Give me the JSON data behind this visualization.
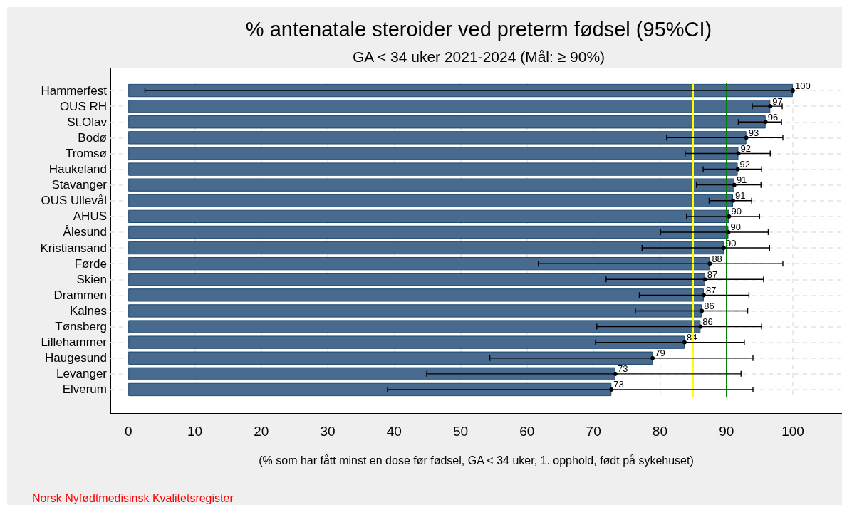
{
  "chart_data": {
    "type": "bar",
    "orientation": "horizontal",
    "title": "% antenatale steroider ved preterm fødsel (95%CI)",
    "subtitle": "GA < 34 uker 2021-2024 (Mål: ≥ 90%)",
    "xlabel": "(% som har fått minst en dose før fødsel, GA < 34 uker, 1. opphold, født på sykehuset)",
    "annotations": [
      "Norsk Nyfødtmedisinsk Kvalitetsregister"
    ],
    "categories": [
      "Hammerfest",
      "OUS RH",
      "St.Olav",
      "Bodø",
      "Tromsø",
      "Haukeland",
      "Stavanger",
      "OUS Ullevål",
      "AHUS",
      "Ålesund",
      "Kristiansand",
      "Førde",
      "Skien",
      "Drammen",
      "Kalnes",
      "Tønsberg",
      "Lillehammer",
      "Haugesund",
      "Levanger",
      "Elverum"
    ],
    "series": [
      {
        "color": "#476a8e",
        "values": [
          100,
          96.6,
          95.9,
          93.0,
          91.8,
          91.7,
          91.2,
          91.0,
          90.4,
          90.3,
          89.6,
          87.5,
          86.8,
          86.6,
          86.3,
          86.1,
          83.7,
          78.9,
          73.3,
          72.7
        ],
        "value_labels": [
          "100",
          "97",
          "96",
          "93",
          "92",
          "92",
          "91",
          "91",
          "90",
          "90",
          "90",
          "88",
          "87",
          "87",
          "86",
          "86",
          "84",
          "79",
          "73",
          "73"
        ]
      },
      {
        "type": "scatter",
        "color": "#000000",
        "values": [
          100,
          96.6,
          95.9,
          93.0,
          91.8,
          91.7,
          91.2,
          91.0,
          90.4,
          90.3,
          89.6,
          87.5,
          86.8,
          86.6,
          86.3,
          86.1,
          83.7,
          78.9,
          73.3,
          72.7
        ],
        "errors": [
          [
            2.5,
            100
          ],
          [
            93.9,
            98.4
          ],
          [
            91.8,
            98.3
          ],
          [
            81.0,
            98.5
          ],
          [
            83.8,
            96.6
          ],
          [
            86.5,
            95.3
          ],
          [
            85.5,
            95.2
          ],
          [
            87.4,
            93.8
          ],
          [
            84.0,
            95.0
          ],
          [
            80.1,
            96.3
          ],
          [
            77.3,
            96.5
          ],
          [
            61.7,
            98.5
          ],
          [
            71.9,
            95.6
          ],
          [
            76.9,
            93.4
          ],
          [
            76.3,
            93.2
          ],
          [
            70.5,
            95.3
          ],
          [
            70.3,
            92.7
          ],
          [
            54.4,
            94.0
          ],
          [
            44.9,
            92.2
          ],
          [
            39.0,
            94.0
          ]
        ]
      }
    ],
    "marker": "circle",
    "xlim": [
      -2.7,
      107.4
    ],
    "xticks": [
      0,
      10,
      20,
      30,
      40,
      50,
      60,
      70,
      80,
      90,
      100
    ],
    "grid": true,
    "ref_lines": [
      {
        "axis": "x",
        "value": 85,
        "color": "#ffff00"
      },
      {
        "axis": "x",
        "value": 90,
        "color": "#008000"
      }
    ]
  }
}
